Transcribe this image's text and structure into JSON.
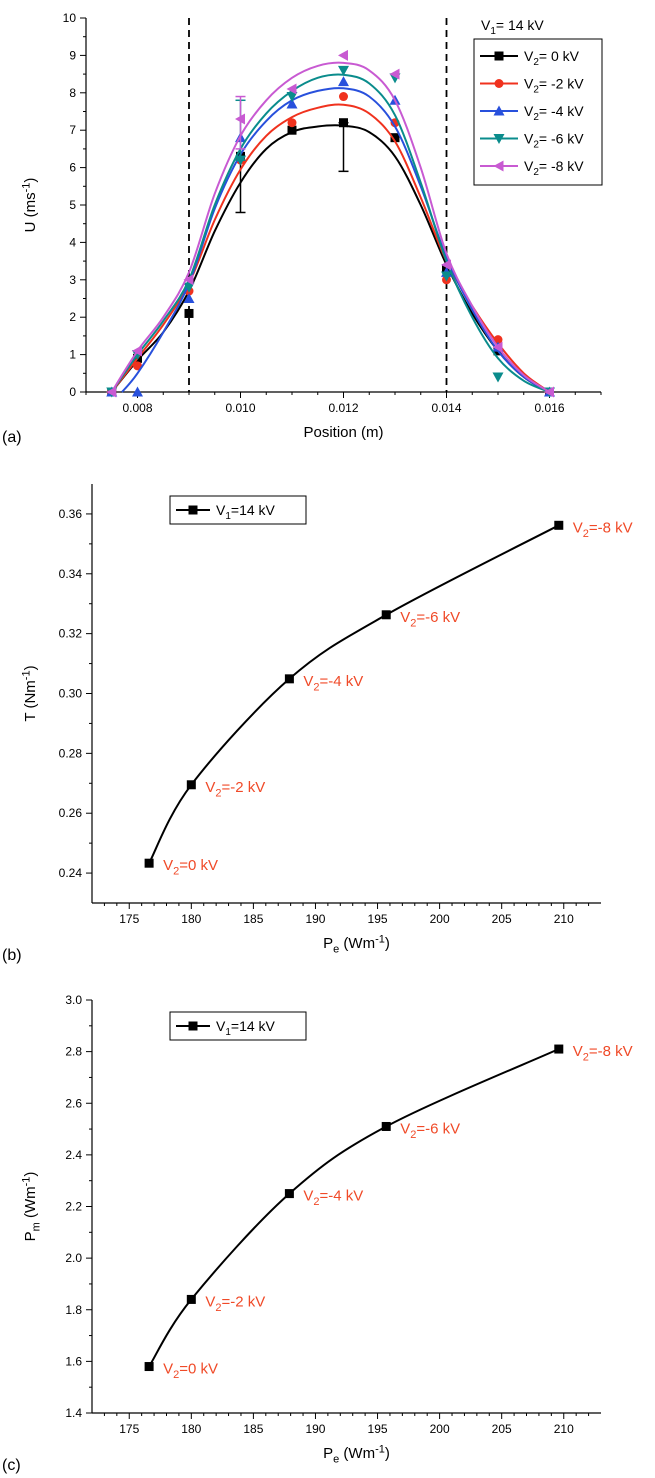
{
  "colors": {
    "axis": "#000000",
    "annotation": "#f04a28",
    "s0": "#000000",
    "s2": "#f0321e",
    "s4": "#2850dc",
    "s6": "#0a8c8c",
    "s8": "#c85ad2"
  },
  "chart_data": [
    {
      "panel": "(a)",
      "type": "line",
      "xlabel": "Position (m)",
      "ylabel": {
        "base": "U (ms",
        "sup": "-1",
        "end": ")"
      },
      "xlim": [
        0.007,
        0.017
      ],
      "ylim": [
        0,
        10
      ],
      "xticks": [
        "0.008",
        "0.010",
        "0.012",
        "0.014",
        "0.016"
      ],
      "xtick_values": [
        0.008,
        0.01,
        0.012,
        0.014,
        0.016
      ],
      "yticks": [
        "0",
        "1",
        "2",
        "3",
        "4",
        "5",
        "6",
        "7",
        "8",
        "9",
        "10"
      ],
      "vlines": [
        0.009,
        0.014
      ],
      "legend_title": {
        "base": "V",
        "sub": "1",
        "rest": "= 14 kV"
      },
      "legend_position": "top-right",
      "series": [
        {
          "label_base": "V",
          "label_sub": "2",
          "label_rest": "= 0 kV",
          "color_key": "s0",
          "marker": "square",
          "x": [
            0.0075,
            0.008,
            0.009,
            0.01,
            0.011,
            0.012,
            0.013,
            0.014,
            0.015,
            0.016
          ],
          "y": [
            0,
            0.9,
            2.1,
            6.3,
            7.0,
            7.2,
            6.8,
            3.3,
            1.1,
            0
          ],
          "errors": [
            {
              "x": 0.01,
              "lo": 4.8,
              "hi": 6.3
            },
            {
              "x": 0.012,
              "lo": 5.9,
              "hi": 7.2
            }
          ],
          "curve": [
            [
              0.0075,
              0
            ],
            [
              0.008,
              0.85
            ],
            [
              0.0085,
              1.6
            ],
            [
              0.009,
              2.7
            ],
            [
              0.0095,
              4.3
            ],
            [
              0.01,
              5.6
            ],
            [
              0.0105,
              6.5
            ],
            [
              0.011,
              6.95
            ],
            [
              0.0115,
              7.1
            ],
            [
              0.012,
              7.12
            ],
            [
              0.0125,
              6.95
            ],
            [
              0.013,
              6.3
            ],
            [
              0.0135,
              5.0
            ],
            [
              0.014,
              3.4
            ],
            [
              0.0145,
              2.1
            ],
            [
              0.015,
              1.1
            ],
            [
              0.0155,
              0.4
            ],
            [
              0.016,
              0
            ]
          ]
        },
        {
          "label_base": "V",
          "label_sub": "2",
          "label_rest": "= -2 kV",
          "color_key": "s2",
          "marker": "circle",
          "x": [
            0.0075,
            0.008,
            0.009,
            0.01,
            0.011,
            0.012,
            0.013,
            0.014,
            0.015,
            0.016
          ],
          "y": [
            0,
            0.7,
            2.7,
            6.2,
            7.2,
            7.9,
            7.2,
            3.0,
            1.4,
            0
          ],
          "curve": [
            [
              0.0075,
              0
            ],
            [
              0.008,
              0.9
            ],
            [
              0.0085,
              1.8
            ],
            [
              0.009,
              2.9
            ],
            [
              0.0095,
              4.6
            ],
            [
              0.01,
              5.95
            ],
            [
              0.0105,
              6.85
            ],
            [
              0.011,
              7.35
            ],
            [
              0.0115,
              7.6
            ],
            [
              0.012,
              7.68
            ],
            [
              0.0125,
              7.45
            ],
            [
              0.013,
              6.7
            ],
            [
              0.0135,
              5.2
            ],
            [
              0.014,
              3.5
            ],
            [
              0.0145,
              2.3
            ],
            [
              0.015,
              1.3
            ],
            [
              0.0155,
              0.5
            ],
            [
              0.016,
              0
            ]
          ]
        },
        {
          "label_base": "V",
          "label_sub": "2",
          "label_rest": "= -4 kV",
          "color_key": "s4",
          "marker": "triangle-up",
          "x": [
            0.0075,
            0.008,
            0.009,
            0.01,
            0.011,
            0.012,
            0.013,
            0.014,
            0.015,
            0.016
          ],
          "y": [
            0,
            0,
            2.5,
            6.8,
            7.7,
            8.3,
            7.8,
            3.2,
            1.2,
            0
          ],
          "curve": [
            [
              0.0077,
              0
            ],
            [
              0.008,
              0.5
            ],
            [
              0.0085,
              1.6
            ],
            [
              0.009,
              2.9
            ],
            [
              0.0095,
              4.9
            ],
            [
              0.01,
              6.35
            ],
            [
              0.0105,
              7.25
            ],
            [
              0.011,
              7.8
            ],
            [
              0.0115,
              8.05
            ],
            [
              0.012,
              8.12
            ],
            [
              0.0125,
              7.9
            ],
            [
              0.013,
              7.1
            ],
            [
              0.0135,
              5.5
            ],
            [
              0.014,
              3.6
            ],
            [
              0.0145,
              2.2
            ],
            [
              0.015,
              1.1
            ],
            [
              0.0155,
              0.4
            ],
            [
              0.016,
              0
            ]
          ]
        },
        {
          "label_base": "V",
          "label_sub": "2",
          "label_rest": "= -6 kV",
          "color_key": "s6",
          "marker": "triangle-down",
          "x": [
            0.0075,
            0.008,
            0.009,
            0.01,
            0.011,
            0.012,
            0.013,
            0.014,
            0.015,
            0.016
          ],
          "y": [
            0,
            1.0,
            2.8,
            6.2,
            7.9,
            8.6,
            8.4,
            3.1,
            0.4,
            0
          ],
          "errors": [
            {
              "x": 0.01,
              "lo": 6.2,
              "hi": 7.8
            }
          ],
          "curve": [
            [
              0.0075,
              0
            ],
            [
              0.008,
              1.0
            ],
            [
              0.0085,
              1.9
            ],
            [
              0.009,
              3.0
            ],
            [
              0.0095,
              5.0
            ],
            [
              0.01,
              6.5
            ],
            [
              0.0105,
              7.45
            ],
            [
              0.011,
              8.05
            ],
            [
              0.0115,
              8.4
            ],
            [
              0.012,
              8.48
            ],
            [
              0.0125,
              8.25
            ],
            [
              0.013,
              7.4
            ],
            [
              0.0135,
              5.6
            ],
            [
              0.014,
              3.5
            ],
            [
              0.0145,
              2.0
            ],
            [
              0.015,
              0.9
            ],
            [
              0.0155,
              0.3
            ],
            [
              0.016,
              0
            ]
          ]
        },
        {
          "label_base": "V",
          "label_sub": "2",
          "label_rest": "= -8 kV",
          "color_key": "s8",
          "marker": "triangle-left",
          "x": [
            0.0075,
            0.008,
            0.009,
            0.01,
            0.011,
            0.012,
            0.013,
            0.014,
            0.015,
            0.016
          ],
          "y": [
            0,
            1.1,
            3.0,
            7.3,
            8.1,
            9.0,
            8.5,
            3.4,
            1.2,
            0
          ],
          "errors": [
            {
              "x": 0.01,
              "lo": 6.5,
              "hi": 7.9
            }
          ],
          "curve": [
            [
              0.0075,
              0
            ],
            [
              0.008,
              1.1
            ],
            [
              0.0085,
              2.0
            ],
            [
              0.009,
              3.2
            ],
            [
              0.0095,
              5.3
            ],
            [
              0.01,
              6.85
            ],
            [
              0.0105,
              7.8
            ],
            [
              0.011,
              8.4
            ],
            [
              0.0115,
              8.72
            ],
            [
              0.012,
              8.8
            ],
            [
              0.0125,
              8.6
            ],
            [
              0.013,
              7.8
            ],
            [
              0.0135,
              6.0
            ],
            [
              0.014,
              3.7
            ],
            [
              0.0145,
              2.3
            ],
            [
              0.015,
              1.2
            ],
            [
              0.0155,
              0.45
            ],
            [
              0.016,
              0
            ]
          ]
        }
      ]
    },
    {
      "panel": "(b)",
      "type": "line",
      "xlabel": {
        "base": "P",
        "sub": "e",
        "mid": " (Wm",
        "sup": "-1",
        "end": ")"
      },
      "ylabel": {
        "base": "T (Nm",
        "sup": "-1",
        "end": ")"
      },
      "xlim": [
        172,
        213
      ],
      "ylim": [
        0.23,
        0.37
      ],
      "xticks": [
        "175",
        "180",
        "185",
        "190",
        "195",
        "200",
        "205",
        "210"
      ],
      "xtick_values": [
        175,
        180,
        185,
        190,
        195,
        200,
        205,
        210
      ],
      "yticks": [
        "0.24",
        "0.26",
        "0.28",
        "0.30",
        "0.32",
        "0.34",
        "0.36"
      ],
      "ytick_values": [
        0.24,
        0.26,
        0.28,
        0.3,
        0.32,
        0.34,
        0.36
      ],
      "legend": {
        "base": "V",
        "sub": "1",
        "rest": "=14 kV"
      },
      "legend_position": "top-left",
      "x": [
        176.6,
        180.0,
        187.9,
        195.7,
        209.6
      ],
      "y": [
        0.2433,
        0.2695,
        0.3049,
        0.3263,
        0.3562
      ],
      "point_labels": [
        {
          "base": "V",
          "sub": "2",
          "rest": "=0 kV"
        },
        {
          "base": "V",
          "sub": "2",
          "rest": "=-2 kV"
        },
        {
          "base": "V",
          "sub": "2",
          "rest": "=-4 kV"
        },
        {
          "base": "V",
          "sub": "2",
          "rest": "=-6 kV"
        },
        {
          "base": "V",
          "sub": "2",
          "rest": "=-8 kV"
        }
      ]
    },
    {
      "panel": "(c)",
      "type": "line",
      "xlabel": {
        "base": "P",
        "sub": "e",
        "mid": " (Wm",
        "sup": "-1",
        "end": ")"
      },
      "ylabel": {
        "base": "P",
        "sub": "m",
        "mid": " (Wm",
        "sup": "-1",
        "end": ")"
      },
      "xlim": [
        172,
        213
      ],
      "ylim": [
        1.4,
        3.0
      ],
      "xticks": [
        "175",
        "180",
        "185",
        "190",
        "195",
        "200",
        "205",
        "210"
      ],
      "xtick_values": [
        175,
        180,
        185,
        190,
        195,
        200,
        205,
        210
      ],
      "yticks": [
        "1.4",
        "1.6",
        "1.8",
        "2.0",
        "2.2",
        "2.4",
        "2.6",
        "2.8",
        "3.0"
      ],
      "ytick_values": [
        1.4,
        1.6,
        1.8,
        2.0,
        2.2,
        2.4,
        2.6,
        2.8,
        3.0
      ],
      "legend": {
        "base": "V",
        "sub": "1",
        "rest": "=14 kV"
      },
      "legend_position": "top-left",
      "x": [
        176.6,
        180.0,
        187.9,
        195.7,
        209.6
      ],
      "y": [
        1.58,
        1.84,
        2.25,
        2.51,
        2.81
      ],
      "point_labels": [
        {
          "base": "V",
          "sub": "2",
          "rest": "=0 kV"
        },
        {
          "base": "V",
          "sub": "2",
          "rest": "=-2 kV"
        },
        {
          "base": "V",
          "sub": "2",
          "rest": "=-4 kV"
        },
        {
          "base": "V",
          "sub": "2",
          "rest": "=-6 kV"
        },
        {
          "base": "V",
          "sub": "2",
          "rest": "=-8 kV"
        }
      ]
    }
  ]
}
